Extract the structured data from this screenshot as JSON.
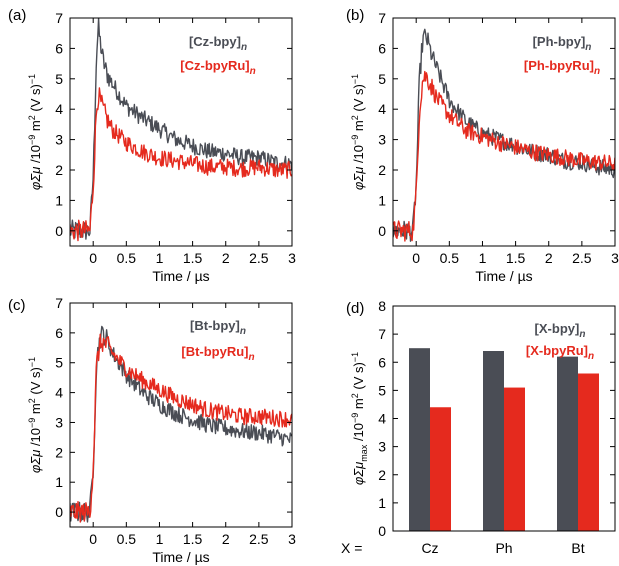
{
  "colors": {
    "dark": "#4a4d55",
    "red": "#e52a1e",
    "axis": "#000000"
  },
  "chart_data": [
    {
      "panel": "(a)",
      "type": "line",
      "xlabel": "Time / µs",
      "ylabel": "φΣμ /10⁻⁹ m² (V s)⁻¹",
      "xlim": [
        -0.35,
        3.0
      ],
      "ylim": [
        -0.5,
        7.0
      ],
      "xticks": [
        "0",
        "0.5",
        "1",
        "1.5",
        "2",
        "2.5",
        "3"
      ],
      "yticks": [
        "0",
        "1",
        "2",
        "3",
        "4",
        "5",
        "6",
        "7"
      ],
      "legend": "top-right",
      "series": [
        {
          "name": "[Cz-bpy]n",
          "color": "#4a4d55",
          "x": [
            -0.35,
            -0.2,
            -0.05,
            0.0,
            0.05,
            0.08,
            0.1,
            0.15,
            0.2,
            0.3,
            0.5,
            0.75,
            1.0,
            1.25,
            1.5,
            1.75,
            2.0,
            2.25,
            2.5,
            2.75,
            3.0
          ],
          "y": [
            0.0,
            0.0,
            0.0,
            1.8,
            5.8,
            6.7,
            6.3,
            5.6,
            5.2,
            4.8,
            4.1,
            3.7,
            3.35,
            3.0,
            2.8,
            2.6,
            2.55,
            2.4,
            2.4,
            2.25,
            2.2
          ]
        },
        {
          "name": "[Cz-bpyRu]n",
          "color": "#e52a1e",
          "x": [
            -0.35,
            -0.2,
            -0.05,
            0.0,
            0.05,
            0.08,
            0.1,
            0.15,
            0.2,
            0.3,
            0.5,
            0.75,
            1.0,
            1.25,
            1.5,
            1.75,
            2.0,
            2.25,
            2.5,
            2.75,
            3.0
          ],
          "y": [
            0.0,
            0.0,
            0.0,
            1.5,
            4.0,
            4.5,
            4.3,
            4.0,
            3.7,
            3.3,
            2.9,
            2.6,
            2.4,
            2.3,
            2.2,
            2.1,
            2.1,
            2.05,
            2.1,
            2.0,
            2.0
          ]
        }
      ]
    },
    {
      "panel": "(b)",
      "type": "line",
      "xlabel": "Time / µs",
      "ylabel": "φΣμ /10⁻⁹ m² (V s)⁻¹",
      "xlim": [
        -0.35,
        3.0
      ],
      "ylim": [
        -0.5,
        7.0
      ],
      "xticks": [
        "0",
        "0.5",
        "1",
        "1.5",
        "2",
        "2.5",
        "3"
      ],
      "yticks": [
        "0",
        "1",
        "2",
        "3",
        "4",
        "5",
        "6",
        "7"
      ],
      "legend": "top-right",
      "series": [
        {
          "name": "[Ph-bpy]n",
          "color": "#4a4d55",
          "x": [
            -0.35,
            -0.2,
            -0.05,
            0.0,
            0.05,
            0.1,
            0.15,
            0.2,
            0.3,
            0.5,
            0.75,
            1.0,
            1.25,
            1.5,
            1.75,
            2.0,
            2.25,
            2.5,
            2.75,
            3.0
          ],
          "y": [
            0.0,
            0.0,
            0.0,
            1.5,
            5.0,
            6.3,
            6.4,
            6.0,
            5.4,
            4.3,
            3.6,
            3.2,
            3.0,
            2.8,
            2.6,
            2.5,
            2.3,
            2.25,
            2.1,
            2.0
          ]
        },
        {
          "name": "[Ph-bpyRu]n",
          "color": "#e52a1e",
          "x": [
            -0.35,
            -0.2,
            -0.05,
            0.0,
            0.05,
            0.1,
            0.15,
            0.2,
            0.3,
            0.5,
            0.75,
            1.0,
            1.25,
            1.5,
            1.75,
            2.0,
            2.25,
            2.5,
            2.75,
            3.0
          ],
          "y": [
            0.0,
            0.0,
            0.0,
            1.2,
            4.0,
            5.0,
            5.1,
            4.9,
            4.4,
            3.8,
            3.3,
            3.1,
            2.9,
            2.75,
            2.6,
            2.5,
            2.4,
            2.3,
            2.25,
            2.2
          ]
        }
      ]
    },
    {
      "panel": "(c)",
      "type": "line",
      "xlabel": "Time / µs",
      "ylabel": "φΣμ /10⁻⁹ m² (V s)⁻¹",
      "xlim": [
        -0.35,
        3.0
      ],
      "ylim": [
        -0.5,
        7.0
      ],
      "xticks": [
        "0",
        "0.5",
        "1",
        "1.5",
        "2",
        "2.5",
        "3"
      ],
      "yticks": [
        "0",
        "1",
        "2",
        "3",
        "4",
        "5",
        "6",
        "7"
      ],
      "legend": "top-right",
      "series": [
        {
          "name": "[Bt-bpy]n",
          "color": "#4a4d55",
          "x": [
            -0.35,
            -0.2,
            -0.05,
            0.0,
            0.05,
            0.1,
            0.15,
            0.2,
            0.3,
            0.5,
            0.75,
            1.0,
            1.25,
            1.5,
            1.75,
            2.0,
            2.25,
            2.5,
            2.75,
            3.0
          ],
          "y": [
            0.0,
            0.0,
            0.0,
            1.5,
            5.0,
            5.8,
            6.0,
            5.8,
            5.3,
            4.6,
            4.0,
            3.6,
            3.3,
            3.1,
            2.9,
            2.8,
            2.7,
            2.65,
            2.55,
            2.4
          ]
        },
        {
          "name": "[Bt-bpyRu]n",
          "color": "#e52a1e",
          "x": [
            -0.35,
            -0.2,
            -0.05,
            0.0,
            0.05,
            0.1,
            0.15,
            0.2,
            0.3,
            0.5,
            0.75,
            1.0,
            1.25,
            1.5,
            1.75,
            2.0,
            2.25,
            2.5,
            2.75,
            3.0
          ],
          "y": [
            0.0,
            0.0,
            0.0,
            1.5,
            4.9,
            5.6,
            5.7,
            5.6,
            5.3,
            4.8,
            4.4,
            4.1,
            3.8,
            3.6,
            3.4,
            3.3,
            3.2,
            3.2,
            3.15,
            3.1
          ]
        }
      ]
    },
    {
      "panel": "(d)",
      "type": "bar",
      "ylabel": "φΣμmax /10⁻⁹ m² (V s)⁻¹",
      "xprefix": "X =",
      "categories": [
        "Cz",
        "Ph",
        "Bt"
      ],
      "ylim": [
        0,
        8
      ],
      "yticks": [
        "0",
        "1",
        "2",
        "3",
        "4",
        "5",
        "6",
        "7",
        "8"
      ],
      "legend": "top-right",
      "series": [
        {
          "name": "[X-bpy]n",
          "color": "#4a4d55",
          "values": [
            6.5,
            6.4,
            6.2
          ]
        },
        {
          "name": "[X-bpyRu]n",
          "color": "#e52a1e",
          "values": [
            4.4,
            5.1,
            5.6
          ]
        }
      ]
    }
  ]
}
